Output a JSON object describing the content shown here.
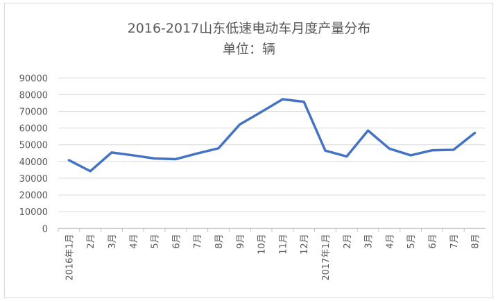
{
  "chart_data": {
    "type": "line",
    "title": "2016-2017山东低速电动车月度产量分布",
    "subtitle": "单位：辆",
    "categories": [
      "2016年1月",
      "2月",
      "3月",
      "4月",
      "5月",
      "6月",
      "7月",
      "8月",
      "9月",
      "10月",
      "11月",
      "12月",
      "2017年1月",
      "2月",
      "3月",
      "4月",
      "5月",
      "6月",
      "7月",
      "8月"
    ],
    "series": [
      {
        "values": [
          40800,
          34200,
          45400,
          43700,
          41800,
          41400,
          44800,
          47900,
          62200,
          69600,
          77200,
          75700,
          46500,
          43000,
          58500,
          47700,
          43700,
          46700,
          47000,
          57100
        ],
        "color": "#4472c4"
      }
    ],
    "ylim": [
      0,
      90000
    ],
    "yticks": [
      0,
      10000,
      20000,
      30000,
      40000,
      50000,
      60000,
      70000,
      80000,
      90000
    ],
    "grid": true,
    "legend": "none"
  }
}
